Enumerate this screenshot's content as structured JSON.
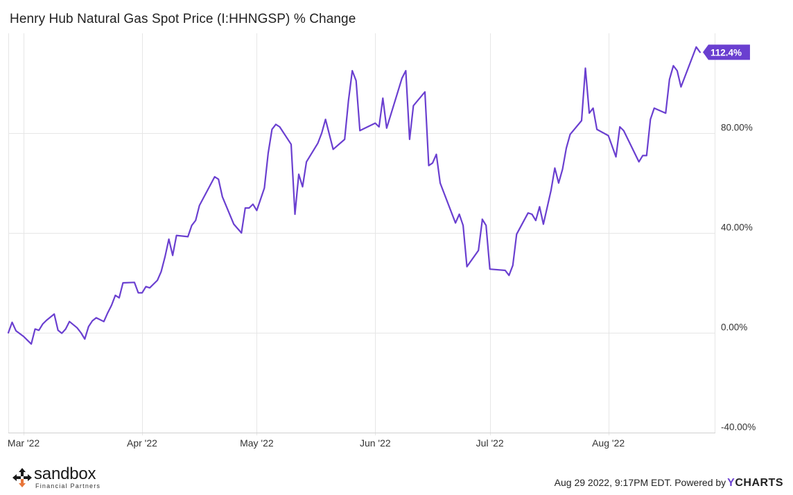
{
  "header": {
    "title": "Henry Hub Natural Gas Spot Price (I:HHNGSP) % Change"
  },
  "footer": {
    "timestamp": "Aug 29 2022, 9:17PM EDT. Powered by",
    "ycharts_y": "Y",
    "ycharts_rest": "CHARTS"
  },
  "logo": {
    "word": "sandbox",
    "subtitle": "Financial Partners",
    "mark_icon": "sandbox-cross-arrows-icon"
  },
  "colors": {
    "line": "#6a3fd0",
    "badge": "#6a3fd0",
    "grid": "#e6e6e6",
    "logo_mark_dark": "#1a1a1a",
    "logo_mark_accent": "#e8763a"
  },
  "chart_data": {
    "type": "line",
    "title": "Henry Hub Natural Gas Spot Price (I:HHNGSP) % Change",
    "xlabel": "",
    "ylabel": "",
    "ylim": [
      -40,
      120
    ],
    "yticks": [
      -40,
      0,
      40,
      80
    ],
    "ytick_labels": [
      "-40.00%",
      "0.00%",
      "40.00%",
      "80.00%"
    ],
    "xlim": [
      "2022-02-25",
      "2022-08-29"
    ],
    "xticks": [
      {
        "date": "2022-03-01",
        "label": "Mar '22"
      },
      {
        "date": "2022-04-01",
        "label": "Apr '22"
      },
      {
        "date": "2022-05-01",
        "label": "May '22"
      },
      {
        "date": "2022-06-01",
        "label": "Jun '22"
      },
      {
        "date": "2022-07-01",
        "label": "Jul '22"
      },
      {
        "date": "2022-08-01",
        "label": "Aug '22"
      }
    ],
    "grid": true,
    "last_value_label": "112.4%",
    "series": [
      {
        "points": [
          [
            "2022-02-25",
            0.0
          ],
          [
            "2022-02-26",
            4.2
          ],
          [
            "2022-02-27",
            0.8
          ],
          [
            "2022-03-01",
            -1.5
          ],
          [
            "2022-03-02",
            -3.0
          ],
          [
            "2022-03-03",
            -4.5
          ],
          [
            "2022-03-04",
            1.5
          ],
          [
            "2022-03-05",
            1.0
          ],
          [
            "2022-03-06",
            3.5
          ],
          [
            "2022-03-07",
            5.0
          ],
          [
            "2022-03-09",
            7.5
          ],
          [
            "2022-03-10",
            1.0
          ],
          [
            "2022-03-11",
            -0.2
          ],
          [
            "2022-03-12",
            1.5
          ],
          [
            "2022-03-13",
            4.5
          ],
          [
            "2022-03-15",
            2.0
          ],
          [
            "2022-03-16",
            0.0
          ],
          [
            "2022-03-17",
            -2.5
          ],
          [
            "2022-03-18",
            2.5
          ],
          [
            "2022-03-19",
            4.8
          ],
          [
            "2022-03-20",
            6.0
          ],
          [
            "2022-03-22",
            4.5
          ],
          [
            "2022-03-23",
            8.0
          ],
          [
            "2022-03-24",
            11.0
          ],
          [
            "2022-03-25",
            15.0
          ],
          [
            "2022-03-26",
            14.0
          ],
          [
            "2022-03-27",
            20.0
          ],
          [
            "2022-03-30",
            20.2
          ],
          [
            "2022-03-31",
            16.0
          ],
          [
            "2022-04-01",
            16.0
          ],
          [
            "2022-04-02",
            18.5
          ],
          [
            "2022-04-03",
            18.0
          ],
          [
            "2022-04-05",
            21.0
          ],
          [
            "2022-04-06",
            24.5
          ],
          [
            "2022-04-07",
            30.5
          ],
          [
            "2022-04-08",
            37.5
          ],
          [
            "2022-04-09",
            31.0
          ],
          [
            "2022-04-10",
            39.0
          ],
          [
            "2022-04-13",
            38.5
          ],
          [
            "2022-04-14",
            43.0
          ],
          [
            "2022-04-15",
            45.0
          ],
          [
            "2022-04-16",
            51.0
          ],
          [
            "2022-04-20",
            62.5
          ],
          [
            "2022-04-21",
            61.5
          ],
          [
            "2022-04-22",
            54.5
          ],
          [
            "2022-04-25",
            43.5
          ],
          [
            "2022-04-27",
            40.0
          ],
          [
            "2022-04-28",
            50.0
          ],
          [
            "2022-04-29",
            50.0
          ],
          [
            "2022-04-30",
            51.5
          ],
          [
            "2022-05-01",
            49.0
          ],
          [
            "2022-05-03",
            58.0
          ],
          [
            "2022-05-04",
            72.0
          ],
          [
            "2022-05-05",
            81.5
          ],
          [
            "2022-05-06",
            83.5
          ],
          [
            "2022-05-07",
            82.5
          ],
          [
            "2022-05-10",
            75.5
          ],
          [
            "2022-05-11",
            47.5
          ],
          [
            "2022-05-12",
            63.5
          ],
          [
            "2022-05-13",
            58.5
          ],
          [
            "2022-05-14",
            68.5
          ],
          [
            "2022-05-17",
            76.0
          ],
          [
            "2022-05-18",
            80.0
          ],
          [
            "2022-05-19",
            85.5
          ],
          [
            "2022-05-21",
            73.5
          ],
          [
            "2022-05-24",
            77.5
          ],
          [
            "2022-05-25",
            93.0
          ],
          [
            "2022-05-26",
            105.0
          ],
          [
            "2022-05-27",
            101.0
          ],
          [
            "2022-05-28",
            81.0
          ],
          [
            "2022-06-01",
            84.0
          ],
          [
            "2022-06-02",
            82.5
          ],
          [
            "2022-06-03",
            94.0
          ],
          [
            "2022-06-04",
            82.0
          ],
          [
            "2022-06-07",
            97.0
          ],
          [
            "2022-06-08",
            102.0
          ],
          [
            "2022-06-09",
            105.0
          ],
          [
            "2022-06-10",
            77.5
          ],
          [
            "2022-06-11",
            91.0
          ],
          [
            "2022-06-14",
            96.5
          ],
          [
            "2022-06-15",
            67.0
          ],
          [
            "2022-06-16",
            68.0
          ],
          [
            "2022-06-17",
            71.5
          ],
          [
            "2022-06-18",
            60.0
          ],
          [
            "2022-06-22",
            44.0
          ],
          [
            "2022-06-23",
            47.5
          ],
          [
            "2022-06-24",
            43.0
          ],
          [
            "2022-06-25",
            26.5
          ],
          [
            "2022-06-28",
            33.0
          ],
          [
            "2022-06-29",
            45.0
          ],
          [
            "2022-06-29",
            45.5
          ],
          [
            "2022-06-30",
            43.0
          ],
          [
            "2022-07-01",
            25.5
          ],
          [
            "2022-07-05",
            25.0
          ],
          [
            "2022-07-06",
            23.0
          ],
          [
            "2022-07-07",
            27.0
          ],
          [
            "2022-07-08",
            39.5
          ],
          [
            "2022-07-11",
            48.0
          ],
          [
            "2022-07-12",
            47.5
          ],
          [
            "2022-07-13",
            45.0
          ],
          [
            "2022-07-14",
            50.5
          ],
          [
            "2022-07-15",
            43.5
          ],
          [
            "2022-07-17",
            57.0
          ],
          [
            "2022-07-18",
            66.0
          ],
          [
            "2022-07-19",
            60.0
          ],
          [
            "2022-07-20",
            65.5
          ],
          [
            "2022-07-21",
            74.0
          ],
          [
            "2022-07-22",
            79.5
          ],
          [
            "2022-07-25",
            85.0
          ],
          [
            "2022-07-26",
            106.0
          ],
          [
            "2022-07-27",
            88.0
          ],
          [
            "2022-07-28",
            90.0
          ],
          [
            "2022-07-29",
            81.5
          ],
          [
            "2022-08-01",
            79.0
          ],
          [
            "2022-08-03",
            70.5
          ],
          [
            "2022-08-04",
            82.5
          ],
          [
            "2022-08-05",
            81.0
          ],
          [
            "2022-08-09",
            68.5
          ],
          [
            "2022-08-10",
            71.0
          ],
          [
            "2022-08-11",
            71.0
          ],
          [
            "2022-08-12",
            85.5
          ],
          [
            "2022-08-13",
            90.0
          ],
          [
            "2022-08-16",
            88.0
          ],
          [
            "2022-08-17",
            101.5
          ],
          [
            "2022-08-18",
            107.0
          ],
          [
            "2022-08-19",
            105.0
          ],
          [
            "2022-08-20",
            98.5
          ],
          [
            "2022-08-24",
            114.5
          ],
          [
            "2022-08-25",
            112.4
          ]
        ]
      }
    ]
  }
}
